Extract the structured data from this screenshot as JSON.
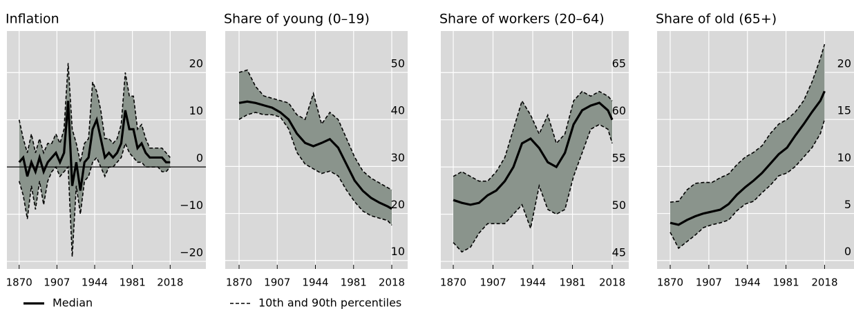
{
  "chart_data": [
    {
      "type": "line",
      "title": "Inflation",
      "zero_line": true,
      "x": [
        1870,
        1874,
        1878,
        1882,
        1886,
        1890,
        1894,
        1898,
        1902,
        1906,
        1910,
        1914,
        1918,
        1922,
        1926,
        1930,
        1934,
        1938,
        1942,
        1946,
        1950,
        1954,
        1958,
        1962,
        1966,
        1970,
        1974,
        1978,
        1982,
        1986,
        1990,
        1994,
        1998,
        2002,
        2006,
        2010,
        2014,
        2018
      ],
      "xlim": [
        1858,
        2053
      ],
      "xticks": [
        1870,
        1907,
        1944,
        1981,
        2018
      ],
      "ylim": [
        -21.6,
        28.8
      ],
      "yticks": [
        {
          "value": -20,
          "label": "−20"
        },
        {
          "value": -10,
          "label": "−10"
        },
        0,
        10,
        20
      ],
      "series": [
        {
          "color": "#000000",
          "values": [
            1,
            2,
            -2,
            1,
            -1,
            2,
            -1,
            1,
            2,
            3,
            1,
            3,
            14,
            -4,
            1,
            -5,
            1,
            2,
            8,
            10,
            6,
            2,
            3,
            2,
            3,
            5,
            12,
            8,
            8,
            4,
            5,
            3,
            2,
            2,
            2,
            2,
            1,
            1
          ]
        },
        {
          "color": "#8a948c",
          "upper": [
            10,
            6,
            3,
            7,
            3,
            6,
            3,
            5,
            5,
            7,
            5,
            8,
            22,
            8,
            5,
            1,
            5,
            6,
            18,
            16,
            12,
            6,
            6,
            5,
            6,
            9,
            20,
            15,
            15,
            8,
            9,
            6,
            4,
            4,
            4,
            4,
            3,
            2
          ],
          "lower": [
            -3,
            -6,
            -11,
            -4,
            -9,
            -3,
            -8,
            -3,
            -1,
            0,
            -2,
            -1,
            0,
            -19,
            -4,
            -10,
            -3,
            -2,
            1,
            2,
            0,
            -2,
            0,
            0,
            1,
            2,
            5,
            3,
            2,
            1,
            1,
            0,
            0,
            0,
            0,
            -1,
            -1,
            0
          ]
        }
      ]
    },
    {
      "type": "line",
      "title": "Share of young (0–19)",
      "x": [
        1870,
        1878,
        1886,
        1894,
        1902,
        1910,
        1918,
        1926,
        1934,
        1942,
        1950,
        1958,
        1966,
        1974,
        1982,
        1990,
        1998,
        2006,
        2014,
        2018
      ],
      "xlim": [
        1856.6,
        2033.4
      ],
      "xticks": [
        1870,
        1907,
        1944,
        1981,
        2018
      ],
      "ylim": [
        8.2,
        58.8
      ],
      "yticks": [
        10,
        20,
        30,
        40,
        50
      ],
      "series": [
        {
          "color": "#000000",
          "values": [
            43.5,
            43.8,
            43.5,
            43,
            42.5,
            41.5,
            40,
            37,
            35,
            34.3,
            35,
            35.8,
            34,
            30.5,
            27,
            24.8,
            23.3,
            22.3,
            21.5,
            21
          ]
        },
        {
          "color": "#8a948c",
          "upper": [
            50,
            50.5,
            47,
            45,
            44.5,
            44,
            43.5,
            41,
            40,
            45.5,
            39,
            41.5,
            40,
            36,
            32,
            29,
            27.5,
            26.5,
            25.5,
            25
          ],
          "lower": [
            40,
            41,
            41.5,
            41,
            41,
            40.5,
            38,
            33,
            30.5,
            29.5,
            28.5,
            29,
            28,
            25,
            22.5,
            20.5,
            19.5,
            19,
            18.5,
            17.5
          ]
        }
      ]
    },
    {
      "type": "line",
      "title": "Share of workers (20–64)",
      "x": [
        1870,
        1878,
        1886,
        1894,
        1902,
        1910,
        1918,
        1926,
        1934,
        1942,
        1950,
        1958,
        1966,
        1974,
        1982,
        1990,
        1998,
        2006,
        2014,
        2018
      ],
      "xlim": [
        1858.4,
        2033.4
      ],
      "xticks": [
        1870,
        1907,
        1944,
        1981,
        2018
      ],
      "ylim": [
        44.2,
        69.4
      ],
      "yticks": [
        45,
        50,
        55,
        60,
        65
      ],
      "series": [
        {
          "color": "#000000",
          "values": [
            51.5,
            51.2,
            51,
            51.2,
            52,
            52.5,
            53.5,
            55,
            57.5,
            58,
            57,
            55.5,
            55,
            56.5,
            59.5,
            61,
            61.5,
            61.8,
            61,
            60
          ]
        },
        {
          "color": "#8a948c",
          "upper": [
            54,
            54.5,
            54,
            53.5,
            53.5,
            54.5,
            56,
            59,
            62,
            60.5,
            58.5,
            60.5,
            57.5,
            58.5,
            62,
            63,
            62.5,
            63,
            62.5,
            62
          ],
          "lower": [
            47,
            46,
            46.5,
            48,
            49,
            49,
            49,
            50,
            51,
            48.5,
            53,
            50.5,
            50,
            50.5,
            54,
            56.5,
            59,
            59.5,
            59,
            57.5
          ]
        }
      ]
    },
    {
      "type": "line",
      "title": "Share of old (65+)",
      "x": [
        1870,
        1878,
        1886,
        1894,
        1902,
        1910,
        1918,
        1926,
        1934,
        1942,
        1950,
        1958,
        1966,
        1974,
        1982,
        1990,
        1998,
        2006,
        2014,
        2018
      ],
      "xlim": [
        1857.4,
        2046.2
      ],
      "xticks": [
        1870,
        1907,
        1944,
        1981,
        2018
      ],
      "ylim": [
        -0.9,
        24.4
      ],
      "yticks": [
        0,
        5,
        10,
        15,
        20
      ],
      "series": [
        {
          "color": "#000000",
          "values": [
            4,
            3.8,
            4.3,
            4.7,
            5,
            5.2,
            5.4,
            6,
            7,
            7.8,
            8.5,
            9.3,
            10.3,
            11.3,
            12,
            13.3,
            14.5,
            15.8,
            17,
            18
          ]
        },
        {
          "color": "#8a948c",
          "upper": [
            6.2,
            6.3,
            7.5,
            8.2,
            8.3,
            8.3,
            8.8,
            9.2,
            10.2,
            11,
            11.5,
            12.2,
            13.5,
            14.5,
            15,
            15.8,
            17,
            19,
            21.5,
            23
          ],
          "lower": [
            3,
            1.3,
            2,
            2.7,
            3.5,
            3.8,
            4,
            4.3,
            5.3,
            6,
            6.3,
            7.2,
            8,
            9,
            9.3,
            10,
            11,
            12,
            13.5,
            15
          ]
        }
      ]
    }
  ],
  "legend": {
    "items": [
      "Median",
      "10th and 90th percentiles"
    ]
  }
}
